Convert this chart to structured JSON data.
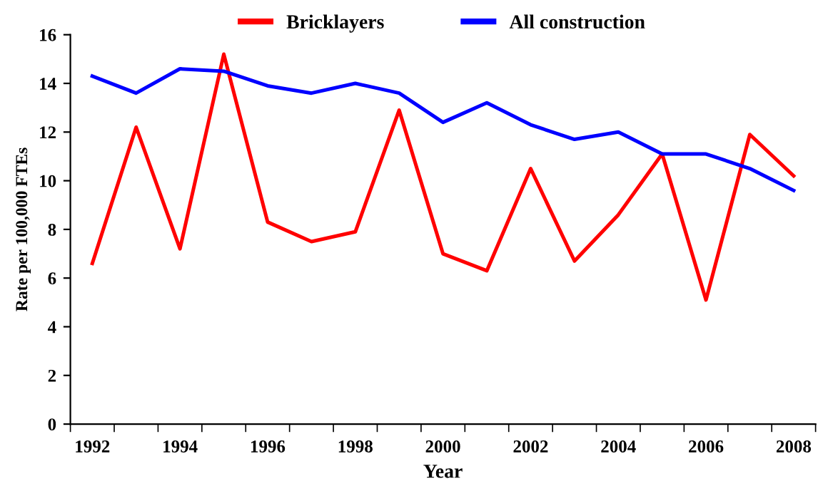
{
  "chart_data": {
    "type": "line",
    "xlabel": "Year",
    "ylabel": "Rate per 100,000 FTEs",
    "categories": [
      "1992",
      null,
      "1994",
      null,
      "1996",
      null,
      "1998",
      null,
      "2000",
      null,
      "2002",
      null,
      "2004",
      null,
      "2006",
      null,
      "2008"
    ],
    "series": [
      {
        "name": "Bricklayers",
        "color": "#ff0000",
        "values": [
          6.6,
          12.2,
          7.2,
          15.2,
          8.3,
          7.5,
          7.9,
          12.9,
          7.0,
          6.3,
          10.5,
          6.7,
          8.6,
          11.1,
          5.1,
          11.9,
          10.2
        ]
      },
      {
        "name": "All construction",
        "color": "#0000ff",
        "values": [
          14.3,
          13.6,
          14.6,
          14.5,
          13.9,
          13.6,
          14.0,
          13.6,
          12.4,
          13.2,
          12.3,
          11.7,
          12.0,
          11.1,
          11.1,
          10.5,
          9.6
        ]
      }
    ],
    "ylim": [
      0,
      16
    ],
    "yticks": [
      0,
      2,
      4,
      6,
      8,
      10,
      12,
      14,
      16
    ],
    "grid": false,
    "legend": "top",
    "marker": "none",
    "line_style": "solid"
  }
}
